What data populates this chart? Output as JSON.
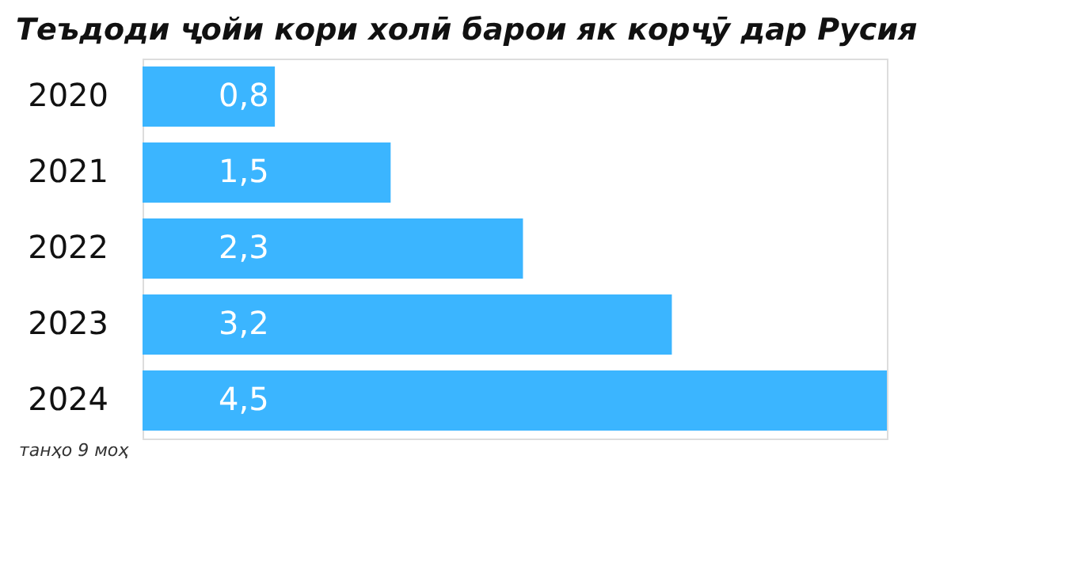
{
  "chart_data": {
    "type": "bar",
    "orientation": "horizontal",
    "title": "Теъдоди ҷойи кори холӣ барои як корҷӯ дар Русия",
    "categories": [
      "2020",
      "2021",
      "2022",
      "2023",
      "2024"
    ],
    "values": [
      0.8,
      1.5,
      2.3,
      3.2,
      4.5
    ],
    "value_labels": [
      "0,8",
      "1,5",
      "2,3",
      "3,2",
      "4,5"
    ],
    "color": "#3bb5ff",
    "annotations": [
      "танҳо 9 моҳ"
    ]
  }
}
